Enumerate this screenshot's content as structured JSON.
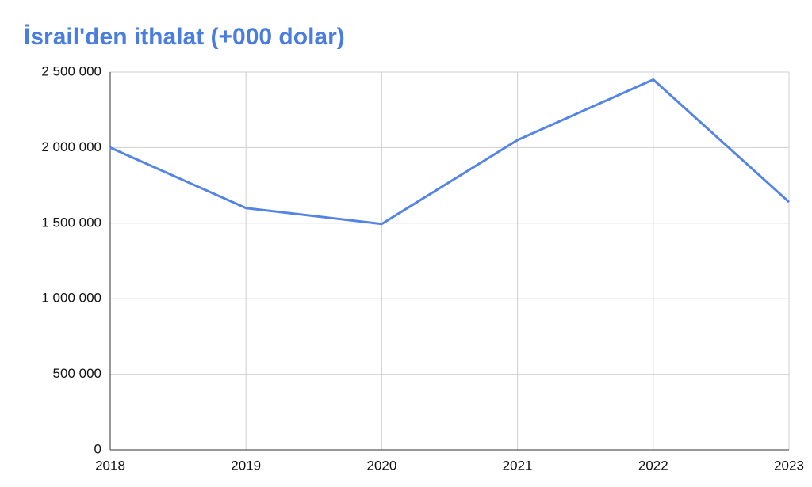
{
  "chart_data": {
    "type": "line",
    "title": "İsrail'den ithalat (+000 dolar)",
    "x": [
      2018,
      2019,
      2020,
      2021,
      2022,
      2023
    ],
    "series": [
      {
        "color": "#5585e4",
        "values": [
          2000000,
          1600000,
          1495000,
          2050000,
          2450000,
          1640000
        ]
      }
    ],
    "xlim": [
      2018,
      2023
    ],
    "xticks": [
      2018,
      2019,
      2020,
      2021,
      2022,
      2023
    ],
    "ylim": [
      0,
      2500000
    ],
    "yticks": [
      0,
      {
        "value": 500000,
        "label": "500 000"
      },
      {
        "value": 1000000,
        "label": "1 000 000"
      },
      {
        "value": 1500000,
        "label": "1 500 000"
      },
      {
        "value": 2000000,
        "label": "2 000 000"
      },
      {
        "value": 2500000,
        "label": "2 500 000"
      }
    ],
    "grid": true
  }
}
